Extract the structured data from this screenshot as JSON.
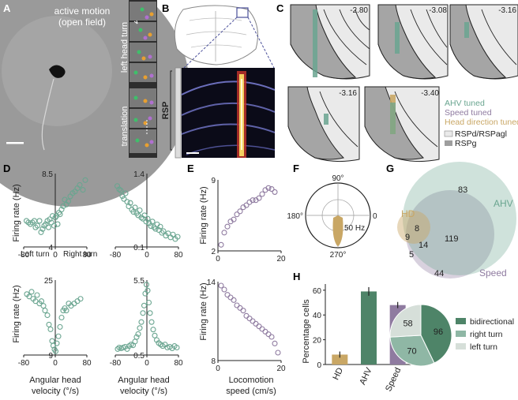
{
  "panels": {
    "A": {
      "letter": "A",
      "title_line1": "active motion",
      "title_line2": "(open field)",
      "strip_label_top": "left head turn",
      "strip_label_bottom": "translation"
    },
    "B": {
      "letter": "B",
      "region": "RSP"
    },
    "C": {
      "letter": "C",
      "sections": [
        "-2.80",
        "-3.08",
        "-3.16",
        "-3.16",
        "-3.40"
      ],
      "legend_tuning": [
        "AHV tuned",
        "Speed tuned",
        "Head direction tuned"
      ],
      "legend_regions": [
        "RSPd/RSPagl",
        "RSPg"
      ]
    },
    "D": {
      "letter": "D",
      "ylabel": "Firing rate (Hz)",
      "xlabel": "Angular head velocity (°/s)",
      "left_turn": "Left turn",
      "right_turn": "Right turn"
    },
    "E": {
      "letter": "E",
      "ylabel": "Firing rate (Hz)",
      "xlabel": "Locomotion speed (cm/s)"
    },
    "F": {
      "letter": "F",
      "angle_labels": [
        "90°",
        "180°",
        "0",
        "270°"
      ],
      "radius_label": "50 Hz"
    },
    "G": {
      "letter": "G",
      "sets": [
        "HD",
        "AHV",
        "Speed"
      ],
      "counts": {
        "hd_only": "9",
        "hd_ahv": "8",
        "hd_ahv_speed": "14",
        "hd_speed": "5",
        "ahv_only": "83",
        "ahv_speed": "119",
        "speed_only": "44"
      }
    },
    "H": {
      "letter": "H",
      "ylabel": "Percentage cells",
      "pie_legend": [
        "bidirectional",
        "right turn",
        "left turn"
      ]
    }
  },
  "colors": {
    "ahv": "#6aa590",
    "speed": "#8f7ba0",
    "hd": "#c9a765",
    "pie_bidir": "#4e8468",
    "pie_right": "#8fb7a5",
    "pie_left": "#d6dfd9",
    "rsp_light": "#e6e6e6",
    "rsp_dark": "#9e9e9e"
  },
  "chart_data": [
    {
      "id": "D-top-left",
      "type": "scatter",
      "xlim": [
        -80,
        80
      ],
      "ylim": [
        4,
        8.5
      ],
      "xticks": [
        "-80",
        "0",
        "80"
      ],
      "yticks": [
        "4",
        "8.5"
      ],
      "x": [
        -73,
        -68,
        -63,
        -58,
        -53,
        -50,
        -45,
        -40,
        -36,
        -32,
        -28,
        -24,
        -20,
        -17,
        -14,
        -10,
        -7,
        -3,
        0,
        3,
        6,
        9,
        12,
        16,
        20,
        24,
        28,
        33,
        38,
        44,
        50,
        56,
        62,
        70,
        76
      ],
      "y": [
        5.6,
        5.5,
        5.4,
        5.5,
        5.6,
        5.2,
        5.3,
        5.6,
        4.9,
        5.1,
        5.3,
        5.4,
        5.6,
        5.2,
        5.7,
        5.5,
        5.9,
        5.3,
        5.8,
        5.9,
        5.4,
        6.1,
        6.0,
        6.3,
        6.5,
        6.9,
        6.6,
        6.8,
        7.1,
        7.3,
        7.4,
        7.6,
        7.8,
        7.5,
        8.1
      ]
    },
    {
      "id": "D-top-right",
      "type": "scatter",
      "xlim": [
        -80,
        80
      ],
      "ylim": [
        0.1,
        1.4
      ],
      "xticks": [
        "-80",
        "0",
        "80"
      ],
      "yticks": [
        "0.1",
        "1.4"
      ],
      "x": [
        -75,
        -70,
        -66,
        -62,
        -58,
        -54,
        -50,
        -46,
        -42,
        -38,
        -34,
        -30,
        -26,
        -22,
        -18,
        -14,
        -10,
        -6,
        -2,
        2,
        6,
        10,
        14,
        18,
        22,
        26,
        30,
        34,
        38,
        42,
        48,
        54,
        60,
        66,
        72,
        78
      ],
      "y": [
        1.18,
        1.12,
        1.1,
        1.0,
        0.95,
        1.05,
        0.9,
        0.82,
        0.88,
        0.76,
        0.72,
        0.8,
        0.7,
        0.66,
        0.75,
        0.62,
        0.6,
        0.66,
        0.55,
        0.6,
        0.52,
        0.47,
        0.55,
        0.45,
        0.42,
        0.5,
        0.4,
        0.46,
        0.35,
        0.38,
        0.3,
        0.34,
        0.27,
        0.32,
        0.24,
        0.28
      ]
    },
    {
      "id": "D-bottom-left",
      "type": "scatter",
      "xlim": [
        -80,
        80
      ],
      "ylim": [
        9,
        25
      ],
      "xticks": [
        "-80",
        "0",
        "80"
      ],
      "yticks": [
        "9",
        "25"
      ],
      "x": [
        -72,
        -66,
        -60,
        -56,
        -50,
        -46,
        -40,
        -35,
        -30,
        -26,
        -20,
        -16,
        -12,
        -8,
        -5,
        -2,
        1,
        4,
        8,
        12,
        16,
        20,
        24,
        28,
        34,
        40,
        48,
        56,
        64
      ],
      "y": [
        22,
        21.5,
        22.5,
        21,
        20.5,
        21.8,
        20,
        20.5,
        19.5,
        18.5,
        17.5,
        15.5,
        14.5,
        12,
        11,
        10.2,
        9.8,
        11.5,
        13,
        15,
        17,
        18.5,
        19,
        18.5,
        20,
        19.5,
        20,
        20.5,
        21
      ]
    },
    {
      "id": "D-bottom-right",
      "type": "scatter",
      "xlim": [
        -80,
        80
      ],
      "ylim": [
        0.5,
        5.5
      ],
      "xticks": [
        "-80",
        "0",
        "80"
      ],
      "yticks": [
        "0.5",
        "5.5"
      ],
      "x": [
        -74,
        -70,
        -65,
        -60,
        -55,
        -50,
        -45,
        -40,
        -35,
        -30,
        -26,
        -22,
        -18,
        -14,
        -10,
        -7,
        -4,
        -1,
        2,
        5,
        8,
        12,
        16,
        20,
        25,
        30,
        35,
        40,
        46,
        52,
        58,
        64,
        70,
        76
      ],
      "y": [
        0.9,
        1.0,
        0.95,
        1.0,
        1.05,
        0.9,
        1.1,
        1.2,
        1.15,
        1.4,
        1.7,
        1.9,
        2.3,
        2.7,
        3.3,
        3.8,
        4.6,
        5.2,
        4.8,
        4.0,
        3.3,
        2.7,
        2.2,
        1.8,
        1.5,
        1.3,
        1.2,
        1.1,
        1.2,
        1.0,
        1.05,
        0.95,
        1.1,
        1.0
      ]
    },
    {
      "id": "E-top",
      "type": "scatter",
      "xlim": [
        0,
        20
      ],
      "ylim": [
        2,
        9
      ],
      "xticks": [
        "0",
        "20"
      ],
      "yticks": [
        "2",
        "9"
      ],
      "x": [
        1,
        2,
        3,
        4,
        5,
        6,
        7,
        8,
        9,
        10,
        11,
        12,
        13,
        14,
        15,
        16,
        17,
        18
      ],
      "y": [
        2.6,
        3.8,
        4.4,
        4.9,
        5.1,
        5.6,
        5.9,
        6.3,
        6.5,
        6.8,
        7.0,
        7.0,
        7.2,
        7.6,
        8.0,
        8.2,
        8.1,
        7.8
      ]
    },
    {
      "id": "E-bottom",
      "type": "scatter",
      "xlim": [
        0,
        20
      ],
      "ylim": [
        8,
        14
      ],
      "xticks": [
        "0",
        "20"
      ],
      "yticks": [
        "8",
        "14"
      ],
      "x": [
        1,
        2,
        3,
        4,
        5,
        6,
        7,
        8,
        9,
        10,
        11,
        12,
        13,
        14,
        15,
        16,
        17,
        18,
        19
      ],
      "y": [
        13.7,
        13.4,
        13.0,
        12.8,
        12.6,
        12.2,
        12.0,
        11.8,
        11.4,
        11.2,
        11.0,
        10.8,
        10.6,
        10.4,
        10.2,
        10.0,
        9.8,
        9.3,
        8.6
      ]
    },
    {
      "id": "H-bar",
      "type": "bar",
      "categories": [
        "HD",
        "AHV",
        "Speed"
      ],
      "values": [
        8,
        59,
        48
      ],
      "errors": [
        2.5,
        3.5,
        2.5
      ],
      "ylim": [
        0,
        65
      ],
      "yticks": [
        "0",
        "20",
        "40",
        "60"
      ],
      "ylabel": "Percentage cells"
    },
    {
      "id": "H-pie",
      "type": "pie",
      "labels": [
        "bidirectional",
        "right turn",
        "left turn"
      ],
      "values": [
        96,
        70,
        58
      ]
    },
    {
      "id": "F-polar",
      "type": "pie",
      "labels": [
        "90°",
        "180°",
        "0",
        "270°"
      ],
      "radius_label": "50 Hz"
    }
  ]
}
